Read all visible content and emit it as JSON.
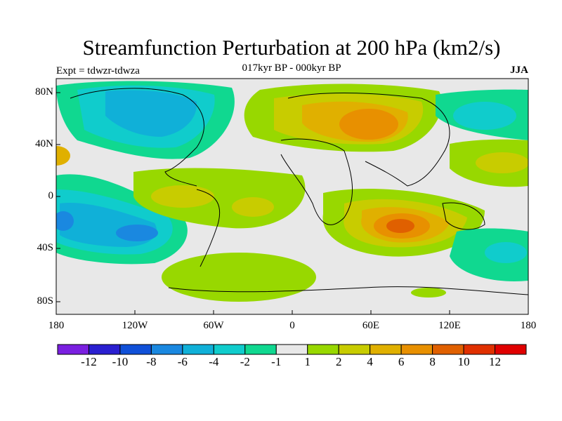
{
  "title": "Streamfunction Perturbation at 200 hPa (km2/s)",
  "subtitle": "017kyr BP - 000kyr BP",
  "left_label": "Expt = tdwzr-tdwza",
  "right_label": "JJA",
  "lat_ticks": [
    "80N",
    "40N",
    "0",
    "40S",
    "80S"
  ],
  "lon_ticks": [
    "180",
    "120W",
    "60W",
    "0",
    "60E",
    "120E",
    "180"
  ],
  "colorbar": {
    "labels": [
      "-12",
      "-10",
      "-8",
      "-6",
      "-4",
      "-2",
      "-1",
      "1",
      "2",
      "4",
      "6",
      "8",
      "10",
      "12"
    ],
    "colors": [
      "#7a1fe0",
      "#2a1fd0",
      "#1050d8",
      "#1a88e0",
      "#10b0d8",
      "#10cccc",
      "#10d890",
      "#e8e8e8",
      "#98d800",
      "#c8cc00",
      "#e0b000",
      "#e89000",
      "#e06000",
      "#e03000",
      "#e00000"
    ]
  }
}
